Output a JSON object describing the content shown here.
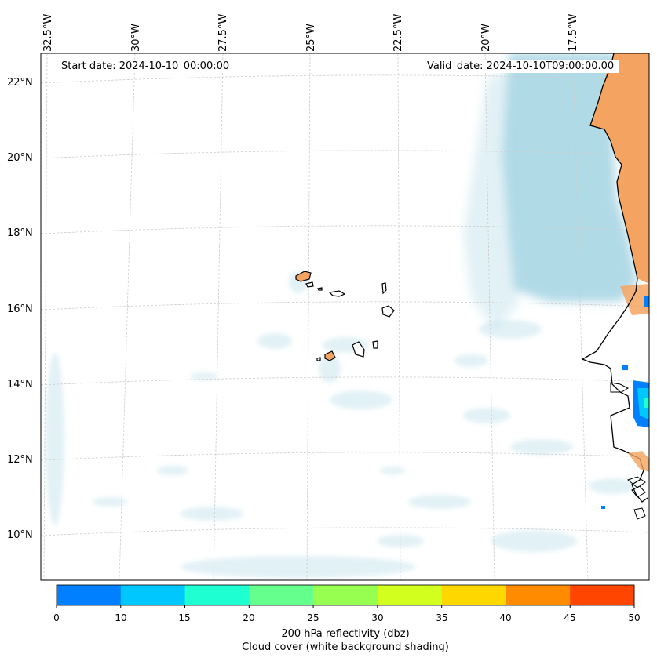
{
  "map": {
    "start_date_label": "Start date: 2024-10-10_00:00:00",
    "valid_date_label": "Valid_date: 2024-10-10T09:00:00.00",
    "lon_labels": [
      "32.5°W",
      "30°W",
      "27.5°W",
      "25°W",
      "22.5°W",
      "20°W",
      "17.5°W"
    ],
    "lat_labels": [
      "22°N",
      "20°N",
      "18°N",
      "16°N",
      "14°N",
      "12°N",
      "10°N"
    ],
    "colors": {
      "land": "#f4a460",
      "cloud": "#add8e6",
      "coastline": "#000000",
      "grid": "#cccccc"
    }
  },
  "colorbar": {
    "ticks": [
      "0",
      "10",
      "15",
      "20",
      "25",
      "30",
      "35",
      "40",
      "45",
      "50"
    ],
    "colors": [
      "#0080ff",
      "#00c8ff",
      "#1effd2",
      "#64ff8c",
      "#96ff50",
      "#d2ff1e",
      "#ffd700",
      "#ff8c00",
      "#ff4500"
    ],
    "label_line1": "200 hPa reflectivity (dbz)",
    "label_line2": "Cloud cover (white background shading)"
  }
}
